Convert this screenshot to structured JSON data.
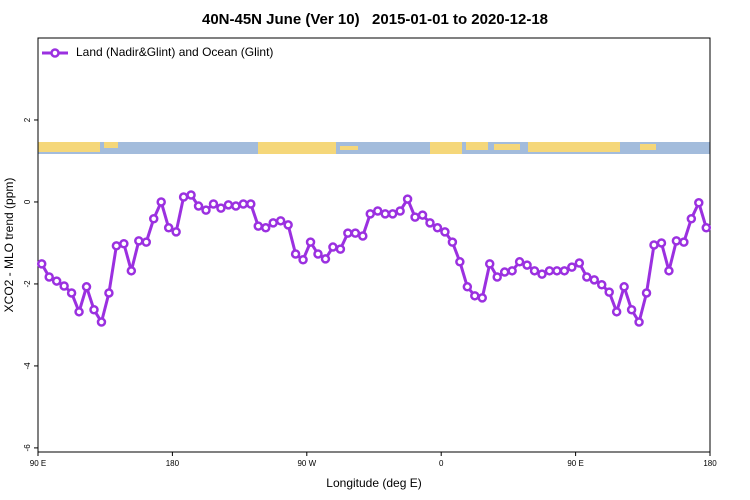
{
  "chart_data": {
    "type": "line",
    "title": "40N-45N June (Ver 10)   2015-01-01 to 2020-12-18",
    "x_label": "Longitude (deg E)",
    "y_label": "XCO2 - MLO trend (ppm)",
    "xlim": [
      90,
      540
    ],
    "xticks": [
      {
        "value": 90,
        "label": "90 E"
      },
      {
        "value": 180,
        "label": "180"
      },
      {
        "value": 270,
        "label": "90 W"
      },
      {
        "value": 360,
        "label": "0"
      },
      {
        "value": 450,
        "label": "90 E"
      },
      {
        "value": 540,
        "label": "180"
      }
    ],
    "ylim": [
      -6.1,
      4
    ],
    "yticks": [
      -6,
      -4,
      -2,
      0,
      2
    ],
    "legend": "top-left",
    "x": [
      92.5,
      97.5,
      102.5,
      107.5,
      112.5,
      117.5,
      122.5,
      127.5,
      132.5,
      137.5,
      142.5,
      147.5,
      152.5,
      157.5,
      162.5,
      167.5,
      172.5,
      177.5,
      182.5,
      187.5,
      192.5,
      197.5,
      202.5,
      207.5,
      212.5,
      217.5,
      222.5,
      227.5,
      232.5,
      237.5,
      242.5,
      247.5,
      252.5,
      257.5,
      262.5,
      267.5,
      272.5,
      277.5,
      282.5,
      287.5,
      292.5,
      297.5,
      302.5,
      307.5,
      312.5,
      317.5,
      322.5,
      327.5,
      332.5,
      337.5,
      342.5,
      347.5,
      352.5,
      357.5,
      362.5,
      367.5,
      372.5,
      377.5,
      382.5,
      387.5,
      392.5,
      397.5,
      402.5,
      407.5,
      412.5,
      417.5,
      422.5,
      427.5,
      432.5,
      437.5,
      442.5,
      447.5,
      452.5,
      457.5,
      462.5,
      467.5,
      472.5,
      477.5,
      482.5,
      487.5,
      492.5,
      497.5,
      502.5,
      507.5,
      512.5,
      517.5,
      522.5,
      527.5,
      532.5,
      537.5
    ],
    "series": [
      {
        "name": "Land (Nadir&Glint) and Ocean (Glint)",
        "color": "#9b30e0",
        "values": [
          -1.51,
          -1.83,
          -1.93,
          -2.05,
          -2.22,
          -2.68,
          -2.07,
          -2.63,
          -2.93,
          -2.22,
          -1.07,
          -1.02,
          -1.68,
          -0.95,
          -0.98,
          -0.41,
          0,
          -0.63,
          -0.73,
          0.12,
          0.17,
          -0.1,
          -0.2,
          -0.05,
          -0.15,
          -0.07,
          -0.1,
          -0.05,
          -0.05,
          -0.59,
          -0.63,
          -0.51,
          -0.46,
          -0.56,
          -1.27,
          -1.41,
          -0.98,
          -1.27,
          -1.39,
          -1.1,
          -1.15,
          -0.76,
          -0.76,
          -0.83,
          -0.29,
          -0.22,
          -0.29,
          -0.29,
          -0.22,
          0.07,
          -0.37,
          -0.32,
          -0.51,
          -0.63,
          -0.73,
          -0.98,
          -1.46,
          -2.07,
          -2.29,
          -2.34,
          -1.51,
          -1.83,
          -1.71,
          -1.68,
          -1.46,
          -1.54,
          -1.68,
          -1.76,
          -1.68,
          -1.68,
          -1.68,
          -1.59,
          -1.49,
          -1.83,
          -1.9,
          -2.02,
          -2.2,
          -2.68,
          -2.07,
          -2.63,
          -2.93,
          -2.22,
          -1.05,
          -1,
          -1.68,
          -0.95,
          -0.98,
          -0.41,
          -0.02,
          -0.63
        ]
      }
    ]
  }
}
